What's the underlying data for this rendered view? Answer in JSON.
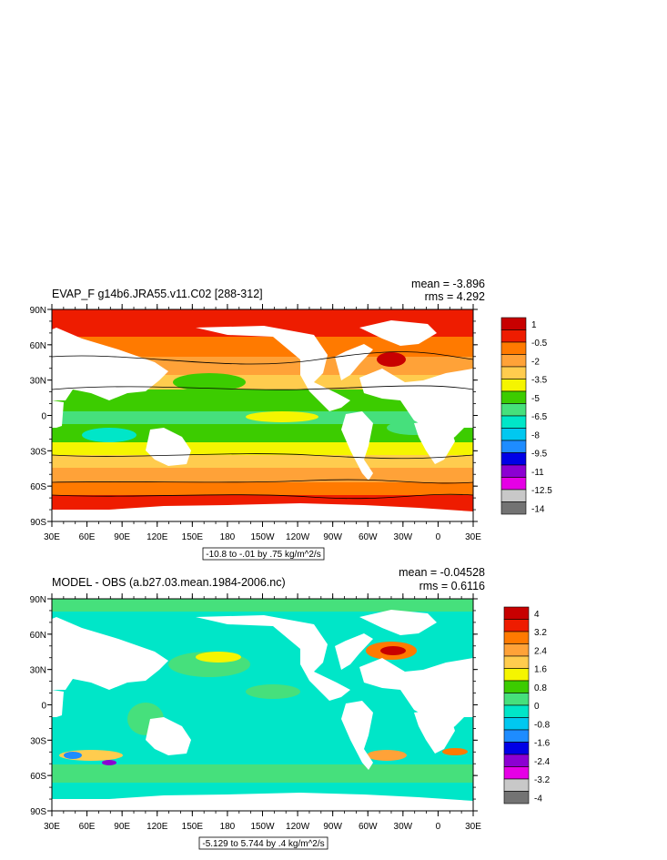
{
  "panels": [
    {
      "title": "EVAP_F g14b6.JRA55.v11.C02 [288-312]",
      "mean": "mean = -3.896",
      "rms": "rms = 4.292",
      "contour_info": "-10.8 to -.01 by .75 kg/m^2/s",
      "lat_labels": [
        "90N",
        "60N",
        "30N",
        "0",
        "30S",
        "60S",
        "90S"
      ],
      "lon_labels": [
        "30E",
        "60E",
        "90E",
        "120E",
        "150E",
        "180",
        "150W",
        "120W",
        "90W",
        "60W",
        "30W",
        "0",
        "30E"
      ],
      "colorbar": {
        "labels": [
          "1",
          "-0.5",
          "-2",
          "-3.5",
          "-5",
          "-6.5",
          "-8",
          "-9.5",
          "-11",
          "-12.5",
          "-14"
        ],
        "colors": [
          "#c80000",
          "#ee1c00",
          "#ff7a00",
          "#ffa238",
          "#ffcc4e",
          "#f5f500",
          "#3ccc00",
          "#46e07c",
          "#00e6c8",
          "#00c8f0",
          "#1e8cff",
          "#0000e6",
          "#8c00d2",
          "#e600e6",
          "#c8c8c8",
          "#737373"
        ]
      }
    },
    {
      "title": "MODEL - OBS (a.b27.03.mean.1984-2006.nc)",
      "mean": "mean = -0.04528",
      "rms": "rms = 0.6116",
      "contour_info": "-5.129 to 5.744 by .4 kg/m^2/s",
      "lat_labels": [
        "90N",
        "60N",
        "30N",
        "0",
        "30S",
        "60S",
        "90S"
      ],
      "lon_labels": [
        "30E",
        "60E",
        "90E",
        "120E",
        "150E",
        "180",
        "150W",
        "120W",
        "90W",
        "60W",
        "30W",
        "0",
        "30E"
      ],
      "colorbar": {
        "labels": [
          "4",
          "3.2",
          "2.4",
          "1.6",
          "0.8",
          "0",
          "-0.8",
          "-1.6",
          "-2.4",
          "-3.2",
          "-4"
        ],
        "colors": [
          "#c80000",
          "#ee1c00",
          "#ff7a00",
          "#ffa238",
          "#ffcc4e",
          "#f5f500",
          "#3ccc00",
          "#46e07c",
          "#00e6c8",
          "#00c8f0",
          "#1e8cff",
          "#0000e6",
          "#8c00d2",
          "#e600e6",
          "#c8c8c8",
          "#737373"
        ]
      }
    }
  ]
}
